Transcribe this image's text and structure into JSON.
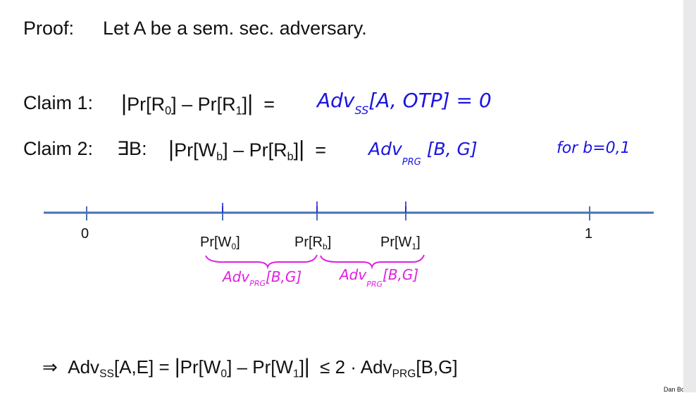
{
  "proof": {
    "label": "Proof:",
    "text": "Let A be a sem. sec. adversary."
  },
  "claim1": {
    "label": "Claim 1:",
    "bar_open": "|",
    "expr_a": "Pr[R",
    "sub_a": "0",
    "expr_b": "] – Pr[R",
    "sub_b": "1",
    "expr_c": "]",
    "bar_close": "|",
    "eq": "=",
    "hw_adv": "Adv",
    "hw_sub": "SS",
    "hw_rest": "[A, OTP] = 0"
  },
  "claim2": {
    "label": "Claim 2:",
    "exists": "∃B:",
    "bar_open": "|",
    "expr_a": "Pr[W",
    "sub_a": "b",
    "expr_b": "] – Pr[R",
    "sub_b": "b",
    "expr_c": "]",
    "bar_close": "|",
    "eq": "=",
    "hw_adv": "Adv",
    "hw_sub": "PRG",
    "hw_rest": "[B, G]",
    "hw_note": "for b=0,1"
  },
  "number_line": {
    "label_0": "0",
    "label_1": "1",
    "label_w0_pre": "Pr[W",
    "label_w0_sub": "0",
    "label_w0_post": "]",
    "label_rb_pre": "Pr[R",
    "label_rb_sub": "b",
    "label_rb_post": "]",
    "label_w1_pre": "Pr[W",
    "label_w1_sub": "1",
    "label_w1_post": "]",
    "brace_left_adv": "Adv",
    "brace_left_sub": "PRG",
    "brace_left_rest": "[B,G]",
    "brace_right_adv": "Adv",
    "brace_right_sub": "PRG",
    "brace_right_rest": "[B,G]"
  },
  "conclusion": {
    "arrow": "⇒",
    "adv": "Adv",
    "adv_sub": "SS",
    "adv_args": "[A,E] =",
    "bar_open": "|",
    "expr_a": "Pr[W",
    "sub_a": "0",
    "expr_b": "] – Pr[W",
    "sub_b": "1",
    "expr_c": "]",
    "bar_close": "|",
    "rel": "≤ 2 · Adv",
    "rel_sub": "PRG",
    "rel_args": "[B,G]"
  },
  "footer": {
    "credit": "Dan Bone"
  },
  "colors": {
    "blue_ink": "#1a14e0",
    "magenta_ink": "#e020e0",
    "axis": "#4a72b0"
  }
}
